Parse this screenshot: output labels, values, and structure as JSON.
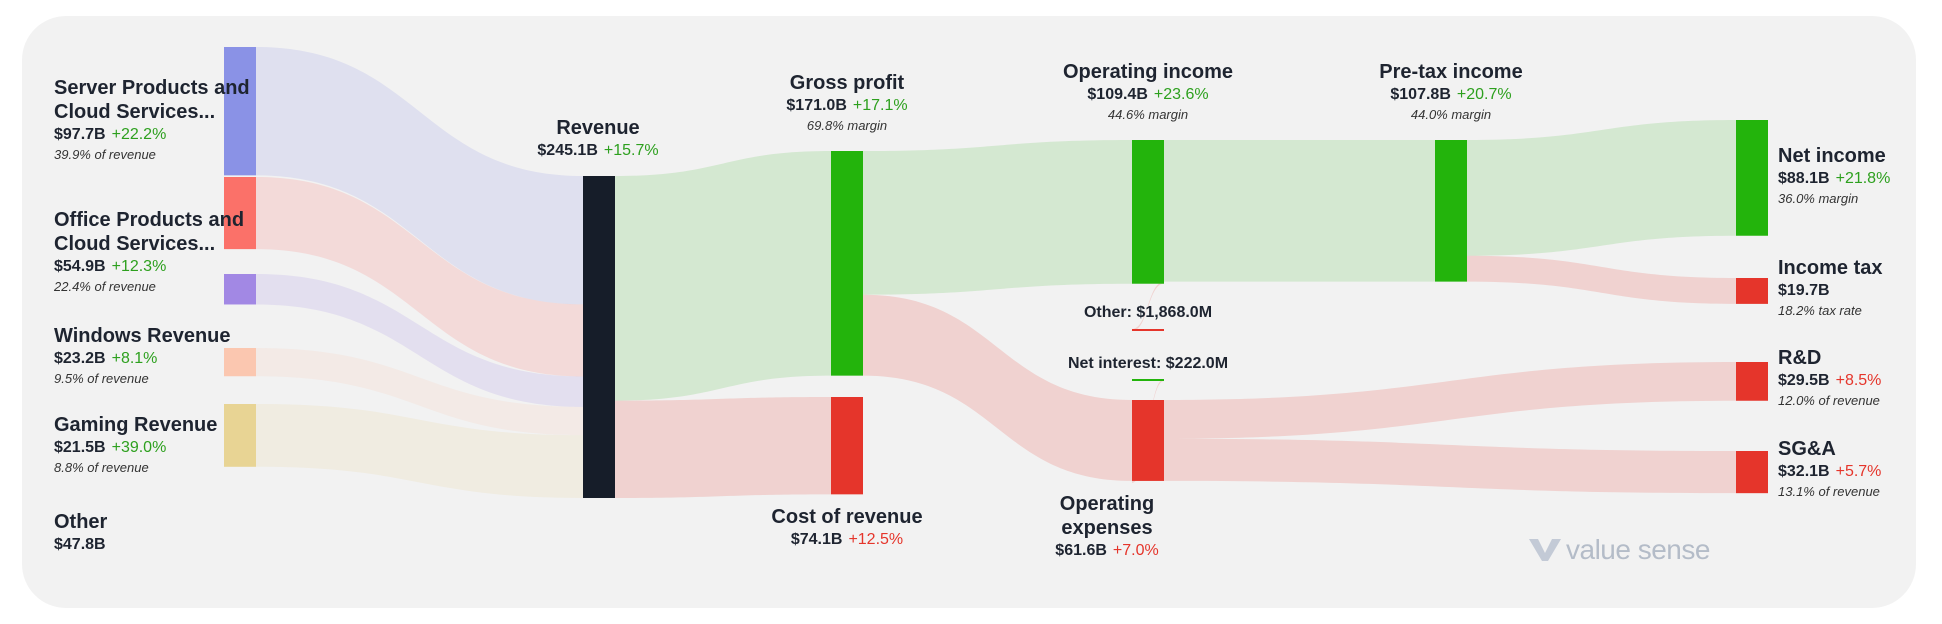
{
  "colors": {
    "background": "#f2f2f2",
    "revenue_node": "#161d29",
    "profit": "#23b40c",
    "expense": "#e5352b",
    "server": "#8a92e6",
    "office": "#fb7169",
    "windows": "#a288e4",
    "gaming": "#fbc7b0",
    "other": "#e8d494",
    "positive_text": "#2da01e",
    "negative_text": "#e5352b"
  },
  "chart_data": {
    "type": "sankey",
    "unit": "USD billions",
    "nodes": [
      {
        "id": "server",
        "name": "Server Products and Cloud Services...",
        "value": 97.7,
        "value_label": "$97.7B",
        "change": "+22.2%",
        "note": "39.9% of revenue"
      },
      {
        "id": "office",
        "name": "Office Products and Cloud Services...",
        "value": 54.9,
        "value_label": "$54.9B",
        "change": "+12.3%",
        "note": "22.4% of revenue"
      },
      {
        "id": "windows",
        "name": "Windows Revenue",
        "value": 23.2,
        "value_label": "$23.2B",
        "change": "+8.1%",
        "note": "9.5% of revenue"
      },
      {
        "id": "gaming",
        "name": "Gaming Revenue",
        "value": 21.5,
        "value_label": "$21.5B",
        "change": "+39.0%",
        "note": "8.8% of revenue"
      },
      {
        "id": "other",
        "name": "Other",
        "value": 47.8,
        "value_label": "$47.8B",
        "change": "",
        "note": ""
      },
      {
        "id": "revenue",
        "name": "Revenue",
        "value": 245.1,
        "value_label": "$245.1B",
        "change": "+15.7%",
        "note": ""
      },
      {
        "id": "gross",
        "name": "Gross profit",
        "value": 171.0,
        "value_label": "$171.0B",
        "change": "+17.1%",
        "note": "69.8% margin"
      },
      {
        "id": "cor",
        "name": "Cost of revenue",
        "value": 74.1,
        "value_label": "$74.1B",
        "change": "+12.5%",
        "note": ""
      },
      {
        "id": "opinc",
        "name": "Operating income",
        "value": 109.4,
        "value_label": "$109.4B",
        "change": "+23.6%",
        "note": "44.6% margin"
      },
      {
        "id": "opex",
        "name": "Operating expenses",
        "value": 61.6,
        "value_label": "$61.6B",
        "change": "+7.0%",
        "note": ""
      },
      {
        "id": "pretax",
        "name": "Pre-tax income",
        "value": 107.8,
        "value_label": "$107.8B",
        "change": "+20.7%",
        "note": "44.0% margin"
      },
      {
        "id": "otherexp",
        "name": "Other",
        "value": 1.868,
        "value_label": "$1,868.0M",
        "change": "",
        "note": ""
      },
      {
        "id": "netint",
        "name": "Net interest",
        "value": 0.222,
        "value_label": "$222.0M",
        "change": "",
        "note": ""
      },
      {
        "id": "net",
        "name": "Net income",
        "value": 88.1,
        "value_label": "$88.1B",
        "change": "+21.8%",
        "note": "36.0% margin"
      },
      {
        "id": "tax",
        "name": "Income tax",
        "value": 19.7,
        "value_label": "$19.7B",
        "change": "",
        "note": "18.2% tax rate"
      },
      {
        "id": "rd",
        "name": "R&D",
        "value": 29.5,
        "value_label": "$29.5B",
        "change": "+8.5%",
        "note": "12.0% of revenue"
      },
      {
        "id": "sga",
        "name": "SG&A",
        "value": 32.1,
        "value_label": "$32.1B",
        "change": "+5.7%",
        "note": "13.1% of revenue"
      }
    ],
    "links": [
      {
        "from": "server",
        "to": "revenue",
        "value": 97.7
      },
      {
        "from": "office",
        "to": "revenue",
        "value": 54.9
      },
      {
        "from": "windows",
        "to": "revenue",
        "value": 23.2
      },
      {
        "from": "gaming",
        "to": "revenue",
        "value": 21.5
      },
      {
        "from": "other",
        "to": "revenue",
        "value": 47.8
      },
      {
        "from": "revenue",
        "to": "gross",
        "value": 171.0
      },
      {
        "from": "revenue",
        "to": "cor",
        "value": 74.1
      },
      {
        "from": "gross",
        "to": "opinc",
        "value": 109.4
      },
      {
        "from": "gross",
        "to": "opex",
        "value": 61.6
      },
      {
        "from": "opinc",
        "to": "pretax",
        "value": 107.8
      },
      {
        "from": "opinc",
        "to": "otherexp",
        "value": 1.868
      },
      {
        "from": "netint",
        "to": "opex",
        "value": 0.222
      },
      {
        "from": "pretax",
        "to": "net",
        "value": 88.1
      },
      {
        "from": "pretax",
        "to": "tax",
        "value": 19.7
      },
      {
        "from": "opex",
        "to": "rd",
        "value": 29.5
      },
      {
        "from": "opex",
        "to": "sga",
        "value": 32.1
      }
    ]
  },
  "labels": {
    "server_name": "Server Products and Cloud Services...",
    "office_name": "Office Products and Cloud Services...",
    "other_exp_label": "Other: $1,868.0M",
    "net_interest_label": "Net interest: $222.0M"
  },
  "brand": {
    "logo_text": "value sense"
  }
}
